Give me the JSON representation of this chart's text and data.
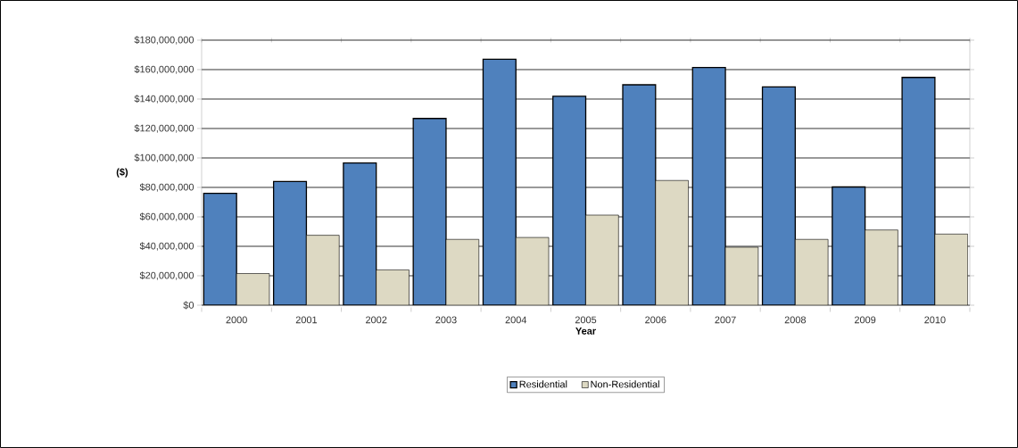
{
  "chart_data": {
    "type": "bar",
    "xlabel": "Year",
    "ylabel": "($)",
    "categories": [
      "2000",
      "2001",
      "2002",
      "2003",
      "2004",
      "2005",
      "2006",
      "2007",
      "2008",
      "2009",
      "2010"
    ],
    "series": [
      {
        "name": "Residential",
        "color": "#4f81bd",
        "values": [
          76000000,
          84000000,
          96600000,
          126800000,
          167000000,
          141900000,
          149700000,
          161400000,
          148300000,
          80300000,
          154700000
        ]
      },
      {
        "name": "Non-Residential",
        "color": "#ddd9c3",
        "values": [
          21500000,
          47500000,
          24000000,
          44700000,
          46000000,
          61200000,
          84700000,
          39400000,
          44700000,
          51100000,
          48300000
        ]
      }
    ],
    "ylim": [
      0,
      180000000
    ],
    "yticks": [
      {
        "value": 0,
        "label": "$0"
      },
      {
        "value": 20000000,
        "label": "$20,000,000"
      },
      {
        "value": 40000000,
        "label": "$40,000,000"
      },
      {
        "value": 60000000,
        "label": "$60,000,000"
      },
      {
        "value": 80000000,
        "label": "$80,000,000"
      },
      {
        "value": 100000000,
        "label": "$100,000,000"
      },
      {
        "value": 120000000,
        "label": "$120,000,000"
      },
      {
        "value": 140000000,
        "label": "$140,000,000"
      },
      {
        "value": 160000000,
        "label": "$160,000,000"
      },
      {
        "value": 180000000,
        "label": "$180,000,000"
      }
    ],
    "grid": "y",
    "legend": "bottom"
  }
}
